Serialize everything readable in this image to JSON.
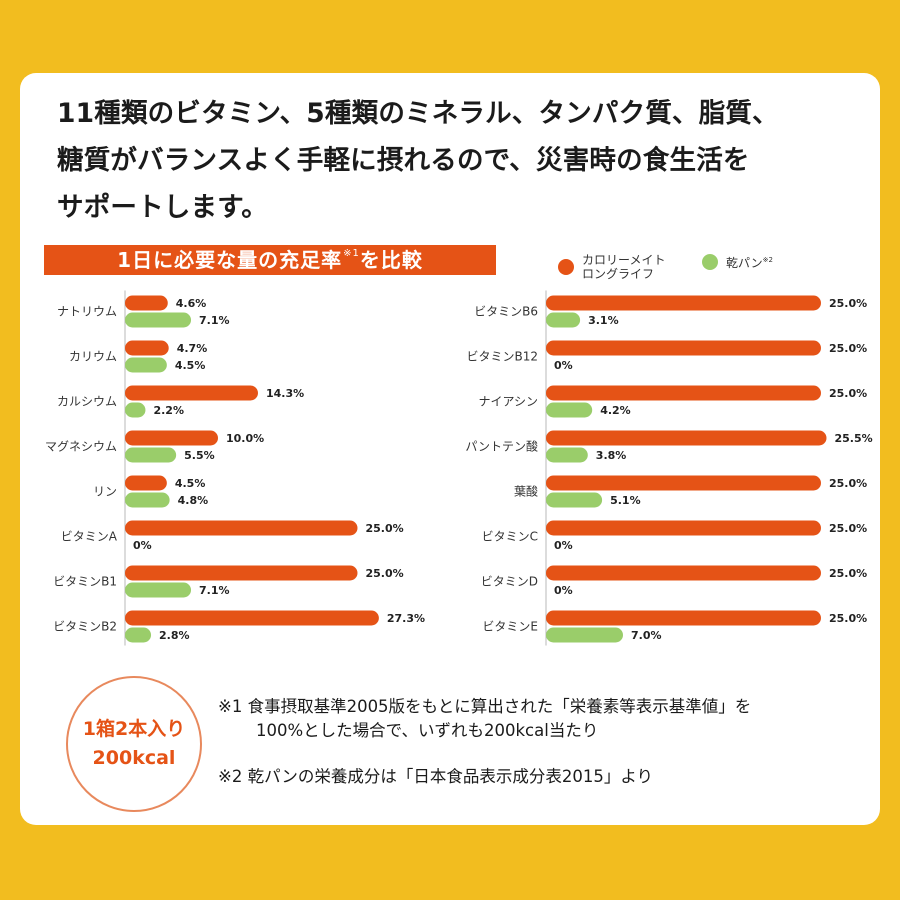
{
  "headline": {
    "line1": "11種類のビタミン、5種類のミネラル、タンパク質、脂質、",
    "line2": "糖質がバランスよく手軽に摂れるので、災害時の食生活を",
    "line3": "サポートします。"
  },
  "banner": {
    "text": "1日に必要な量の充足率",
    "sup": "※1",
    "suffix": "を比較"
  },
  "legend": {
    "calorie_mate": "カロリーメイト ロングライフ",
    "kanpan": "乾パン",
    "kanpan_sup": "※2"
  },
  "colors": {
    "orange": "#e55316",
    "green": "#9acd6a",
    "background": "#f2bd1f"
  },
  "stamp": {
    "line1": "1箱2本入り",
    "line2": "200kcal"
  },
  "notes": {
    "note1_line1": "※1 食事摂取基準2005版をもとに算出された「栄養素等表示基準値」を",
    "note1_line2": "100%とした場合で、いずれも200kcal当たり",
    "note2": "※2 乾パンの栄養成分は「日本食品表示成分表2015」より"
  },
  "chart_data": {
    "type": "bar",
    "orientation": "horizontal",
    "title": "1日に必要な量の充足率※1を比較",
    "series_names": [
      "カロリーメイト ロングライフ",
      "乾パン※2"
    ],
    "xlim": [
      0,
      26
    ],
    "panels": [
      {
        "categories": [
          "ナトリウム",
          "カリウム",
          "カルシウム",
          "マグネシウム",
          "リン",
          "ビタミンA",
          "ビタミンB1",
          "ビタミンB2"
        ],
        "calorie_mate": [
          4.6,
          4.7,
          14.3,
          10.0,
          4.5,
          25.0,
          25.0,
          27.3
        ],
        "kanpan": [
          7.1,
          4.5,
          2.2,
          5.5,
          4.8,
          0,
          7.1,
          2.8
        ],
        "calorie_mate_labels": [
          "4.6%",
          "4.7%",
          "14.3%",
          "10.0%",
          "4.5%",
          "25.0%",
          "25.0%",
          "27.3%"
        ],
        "kanpan_labels": [
          "7.1%",
          "4.5%",
          "2.2%",
          "5.5%",
          "4.8%",
          "0%",
          "7.1%",
          "2.8%"
        ]
      },
      {
        "categories": [
          "ビタミンB6",
          "ビタミンB12",
          "ナイアシン",
          "パントテン酸",
          "葉酸",
          "ビタミンC",
          "ビタミンD",
          "ビタミンE"
        ],
        "calorie_mate": [
          25.0,
          25.0,
          25.0,
          25.5,
          25.0,
          25.0,
          25.0,
          25.0
        ],
        "kanpan": [
          3.1,
          0,
          4.2,
          3.8,
          5.1,
          0,
          0,
          7.0
        ],
        "calorie_mate_labels": [
          "25.0%",
          "25.0%",
          "25.0%",
          "25.5%",
          "25.0%",
          "25.0%",
          "25.0%",
          "25.0%"
        ],
        "kanpan_labels": [
          "3.1%",
          "0%",
          "4.2%",
          "3.8%",
          "5.1%",
          "0%",
          "0%",
          "7.0%"
        ]
      }
    ]
  }
}
